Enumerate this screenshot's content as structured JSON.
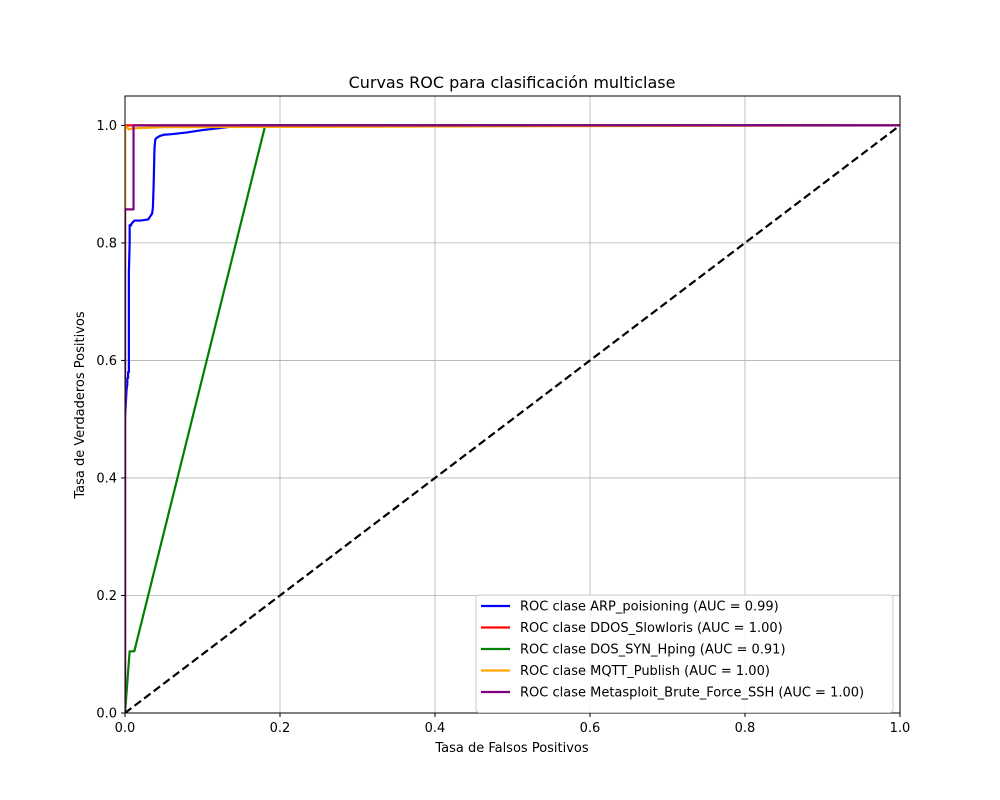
{
  "chart_data": {
    "type": "line",
    "title": "Curvas ROC para clasificación multiclase",
    "xlabel": "Tasa de Falsos Positivos",
    "ylabel": "Tasa de Verdaderos Positivos",
    "xlim": [
      0,
      1
    ],
    "ylim": [
      0,
      1.05
    ],
    "xticks": [
      0,
      0.2,
      0.4,
      0.6,
      0.8,
      1
    ],
    "xtick_labels": [
      "0.0",
      "0.2",
      "0.4",
      "0.6",
      "0.8",
      "1.0"
    ],
    "yticks": [
      0,
      0.2,
      0.4,
      0.6,
      0.8,
      1
    ],
    "ytick_labels": [
      "0.0",
      "0.2",
      "0.4",
      "0.6",
      "0.8",
      "1.0"
    ],
    "grid": true,
    "legend_position": "bottom-right",
    "series": [
      {
        "name": "ROC clase ARP_poisioning (AUC = 0.99)",
        "color": "#0000ff",
        "x": [
          0,
          0,
          0.002,
          0.003,
          0.003,
          0.004,
          0.004,
          0.004,
          0.005,
          0.005,
          0.006,
          0.006,
          0.008,
          0.008,
          0.01,
          0.012,
          0.02,
          0.03,
          0.035,
          0.036,
          0.037,
          0.038,
          0.039,
          0.04,
          0.045,
          0.05,
          0.06,
          0.08,
          0.1,
          0.12,
          0.15,
          1
        ],
        "y": [
          0,
          0.5,
          0.55,
          0.56,
          0.57,
          0.57,
          0.575,
          0.58,
          0.58,
          0.75,
          0.8,
          0.83,
          0.83,
          0.832,
          0.835,
          0.838,
          0.838,
          0.84,
          0.85,
          0.86,
          0.9,
          0.96,
          0.975,
          0.978,
          0.982,
          0.984,
          0.985,
          0.988,
          0.992,
          0.995,
          1.0,
          1.0
        ]
      },
      {
        "name": "ROC clase DDOS_Slowloris (AUC = 1.00)",
        "color": "#ff0000",
        "x": [
          0,
          0,
          1
        ],
        "y": [
          0,
          1,
          1
        ]
      },
      {
        "name": "ROC clase DOS_SYN_Hping (AUC = 0.91)",
        "color": "#008000",
        "x": [
          0,
          0.006,
          0.006,
          0.012,
          0.18,
          0.18,
          1
        ],
        "y": [
          0,
          0.105,
          0.105,
          0.105,
          0.995,
          1.0,
          1.0
        ]
      },
      {
        "name": "ROC clase MQTT_Publish (AUC = 1.00)",
        "color": "#ffa500",
        "x": [
          0,
          0,
          0.005,
          0.01,
          0.05,
          1
        ],
        "y": [
          0,
          1.0,
          0.993,
          0.995,
          0.997,
          1.0
        ]
      },
      {
        "name": "ROC clase Metasploit_Brute_Force_SSH (AUC = 1.00)",
        "color": "#800080",
        "x": [
          0,
          0,
          0.011,
          0.011,
          1
        ],
        "y": [
          0,
          0.857,
          0.857,
          1.0,
          1.0
        ]
      }
    ],
    "reference_line": {
      "x": [
        0,
        1
      ],
      "y": [
        0,
        1
      ],
      "color": "#000000",
      "style": "dashed"
    }
  }
}
